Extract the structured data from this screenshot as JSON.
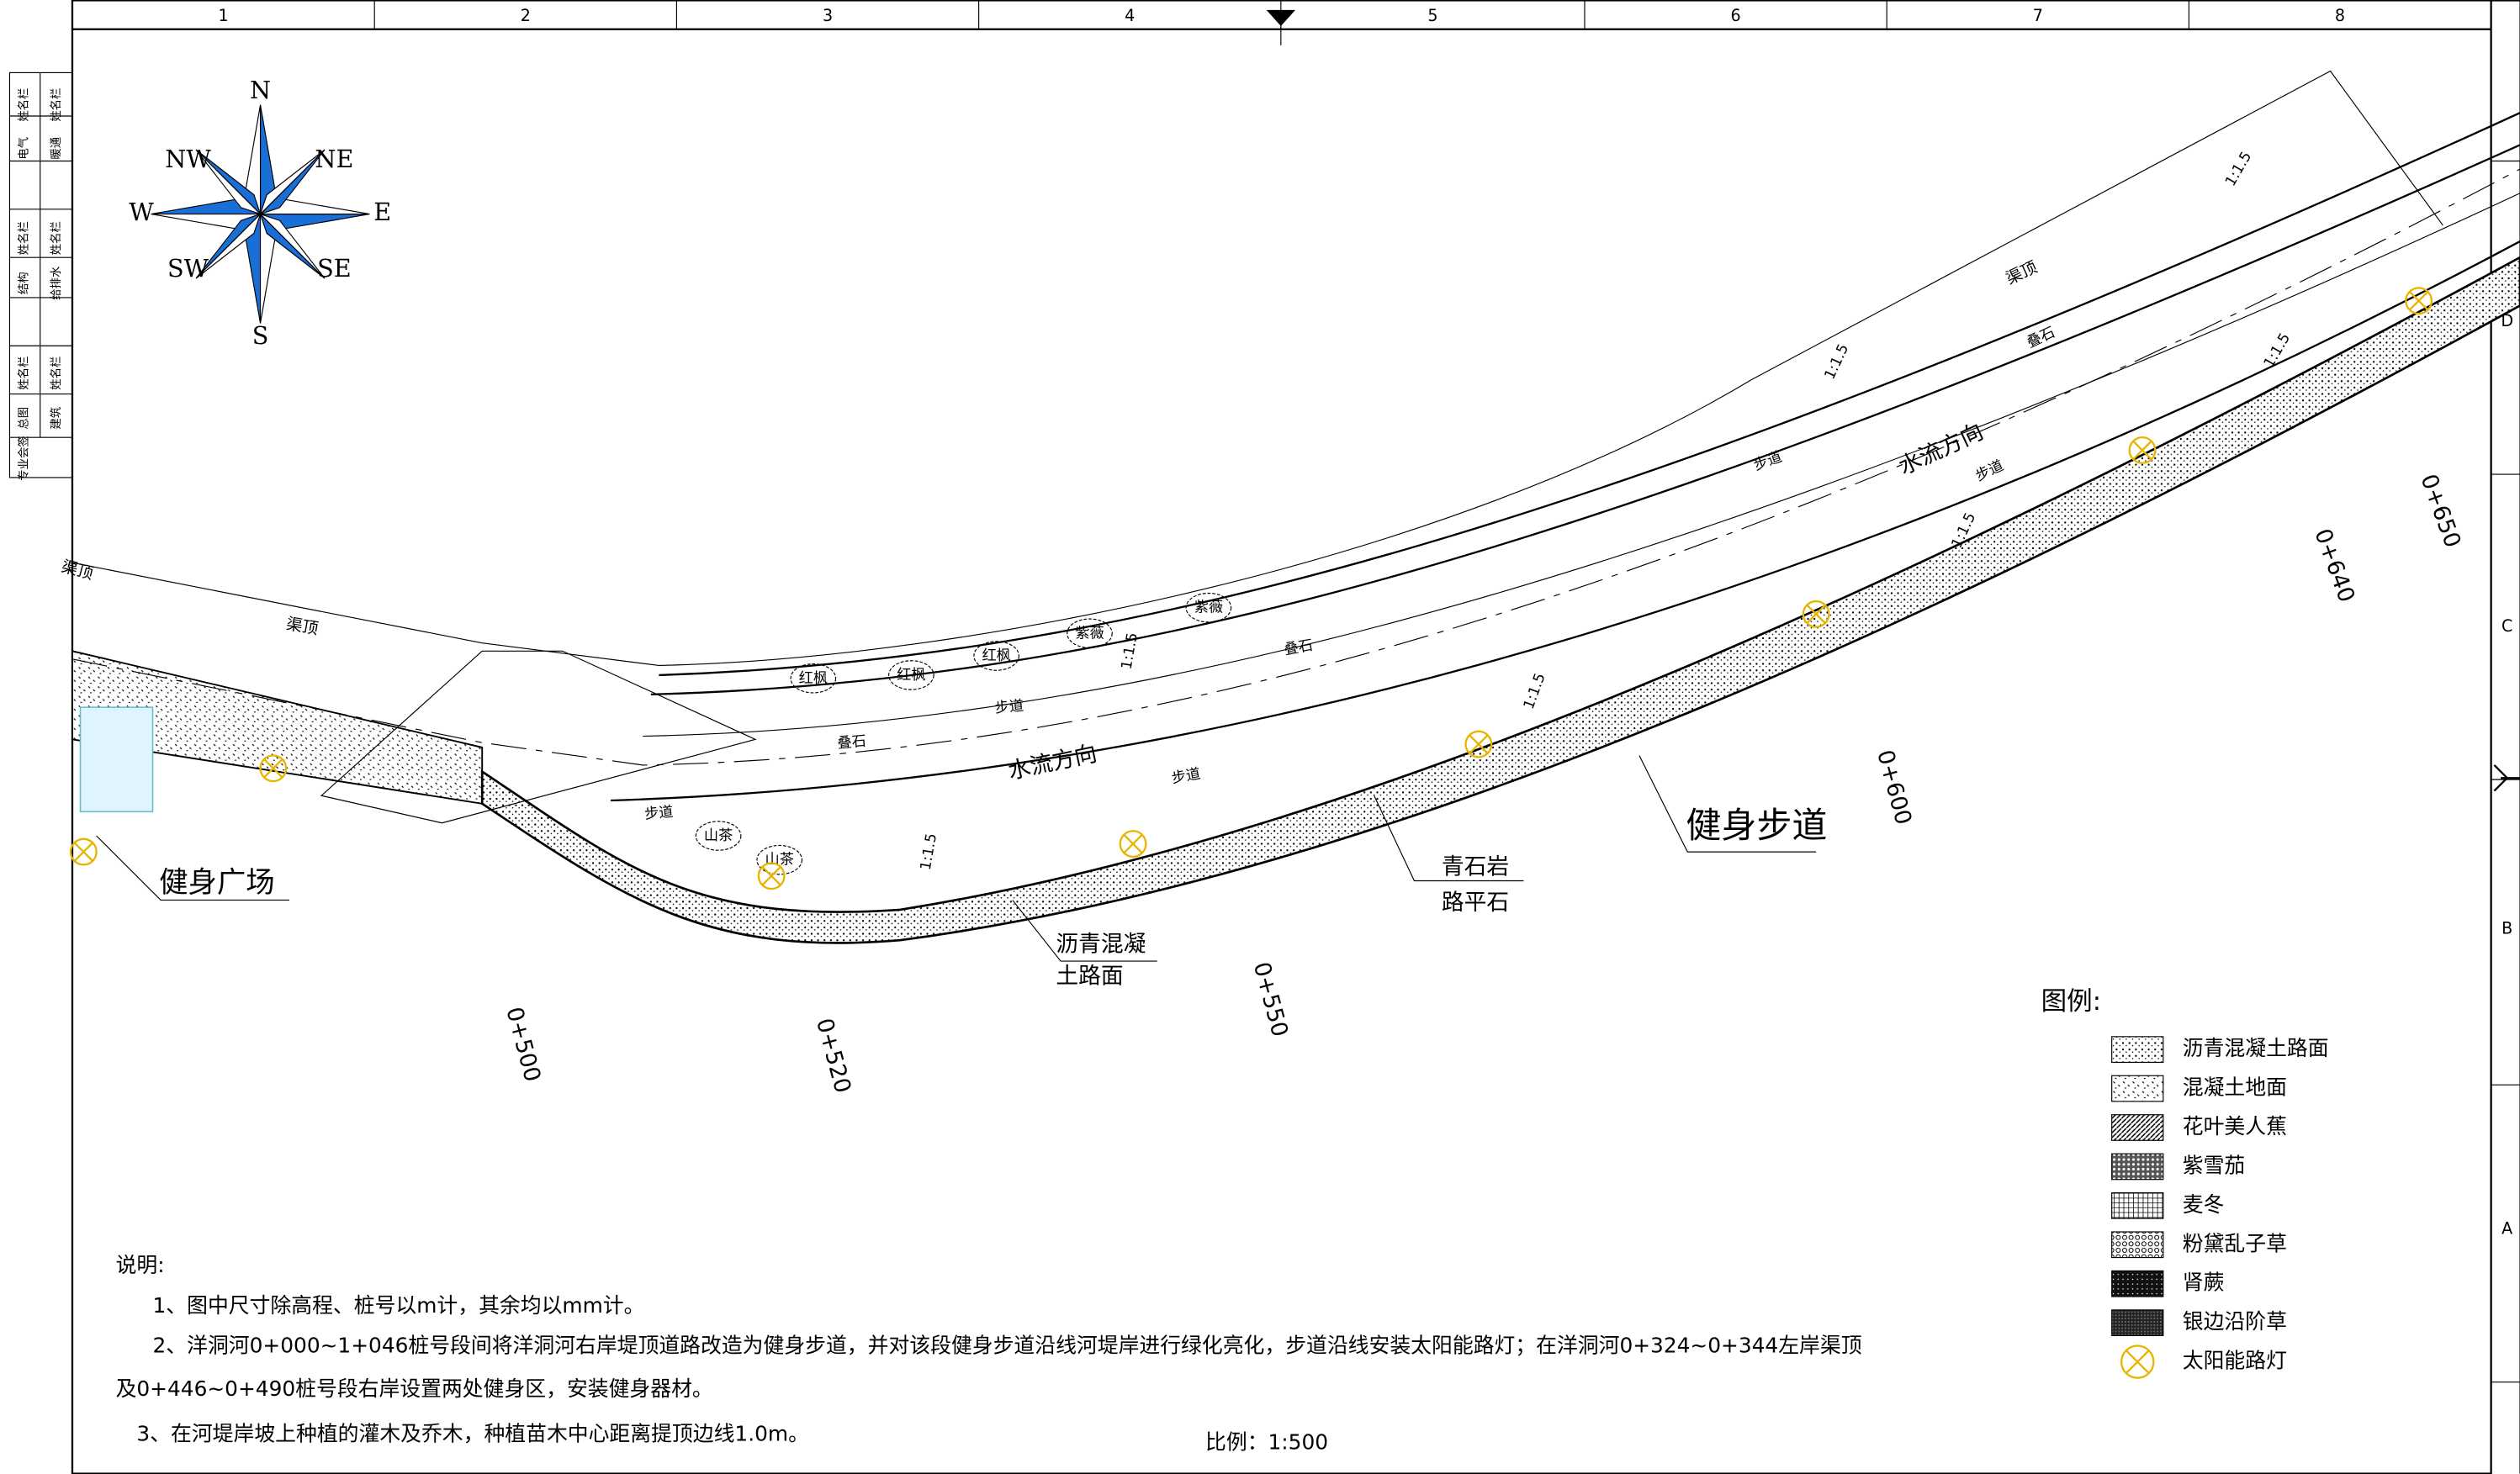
{
  "frame": {
    "columns": [
      "1",
      "2",
      "3",
      "4",
      "5",
      "6",
      "7",
      "8"
    ],
    "rows": [
      "D",
      "C",
      "B",
      "A"
    ]
  },
  "title_block": [
    "姓名栏",
    "姓名栏",
    "电气",
    "暖通",
    "姓名栏",
    "姓名栏",
    "结构",
    "给排水",
    "姓名栏",
    "姓名栏",
    "总图",
    "建筑",
    "专业会签"
  ],
  "compass": [
    "N",
    "NE",
    "E",
    "SE",
    "S",
    "SW",
    "W",
    "NW"
  ],
  "labels": [
    "渠顶",
    "渠顶",
    "渠顶",
    "叠石",
    "叠石",
    "叠石",
    "步道",
    "步道",
    "步道",
    "步道",
    "步道",
    "水流方向",
    "水流方向",
    "红枫",
    "红枫",
    "红枫",
    "紫薇",
    "紫薇",
    "山茶",
    "山茶",
    "健身广场",
    "健身步道",
    "青石岩",
    "路平石",
    "沥青混凝",
    "土路面",
    "0+500",
    "0+520",
    "0+550",
    "0+600",
    "0+640",
    "0+650",
    "1:1.5",
    "1:1.5",
    "1:1.5",
    "1:1.5",
    "1:1.5",
    "1:1.5",
    "1:1.5"
  ],
  "legend": {
    "title": "图例:",
    "items": [
      "沥青混凝土路面",
      "混凝土地面",
      "花叶美人蕉",
      "紫雪茄",
      "麦冬",
      "粉黛乱子草",
      "肾蕨",
      "银边沿阶草",
      "太阳能路灯"
    ]
  },
  "notes": {
    "title": "说明:",
    "lines": [
      "1、图中尺寸除高程、桩号以m计，其余均以mm计。",
      "2、洋洞河0+000~1+046桩号段间将洋洞河右岸堤顶道路改造为健身步道，并对该段健身步道沿线河堤岸进行绿化亮化，步道沿线安装太阳能路灯；在洋洞河0+324~0+344左岸渠顶",
      "及0+446~0+490桩号段右岸设置两处健身区，安装健身器材。",
      "3、在河堤岸坡上种植的灌木及乔木，种植苗木中心距离提顶边线1.0m。"
    ]
  },
  "scale": "比例：1:500"
}
